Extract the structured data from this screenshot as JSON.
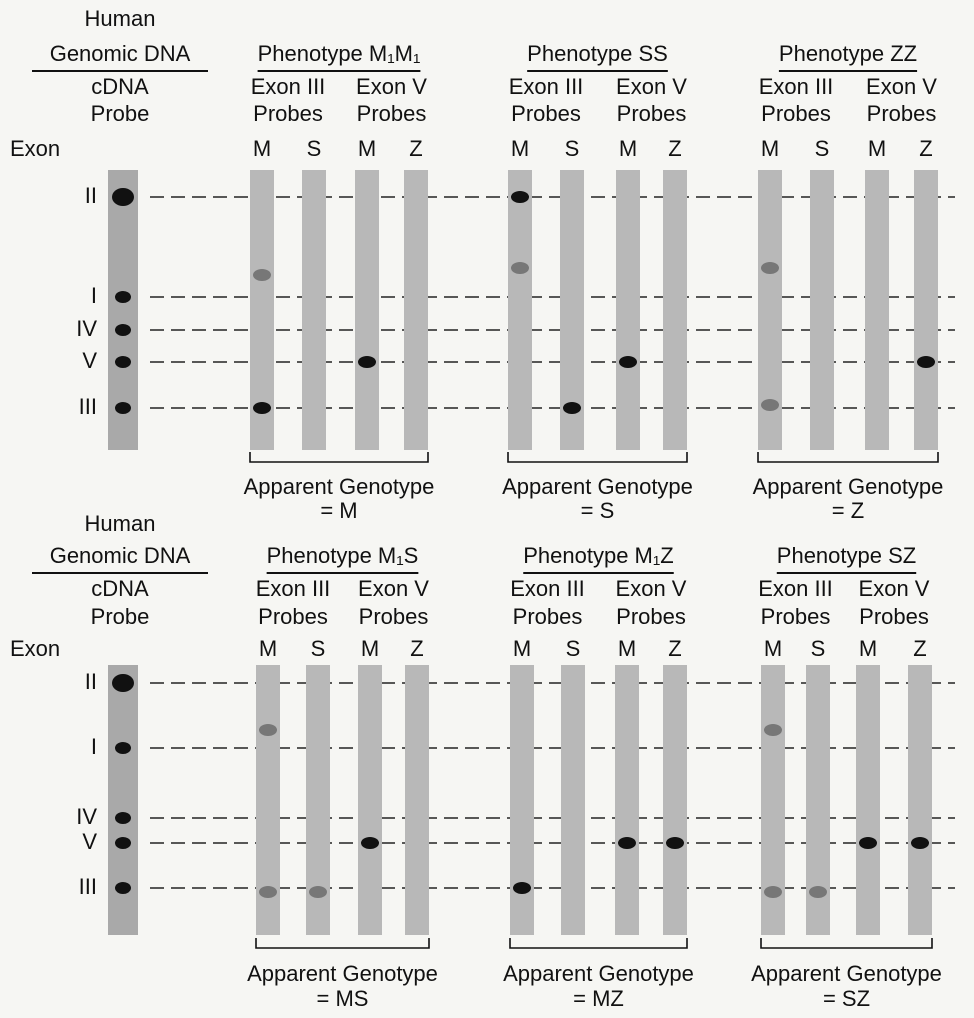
{
  "panels": [
    {
      "header": {
        "line1": "Human",
        "line2": "Genomic DNA",
        "line3": "cDNA",
        "line4": "Probe"
      },
      "exon_label": "Exon",
      "exons": [
        "II",
        "I",
        "IV",
        "V",
        "III"
      ],
      "groups": [
        {
          "title": "Phenotype M₁M₁",
          "probe_sets": [
            {
              "exon": "Exon III",
              "label": "Probes",
              "lanes": [
                "M",
                "S"
              ]
            },
            {
              "exon": "Exon V",
              "label": "Probes",
              "lanes": [
                "M",
                "Z"
              ]
            }
          ],
          "genotype_label": "Apparent Genotype",
          "genotype": "= M"
        },
        {
          "title": "Phenotype SS",
          "probe_sets": [
            {
              "exon": "Exon III",
              "label": "Probes",
              "lanes": [
                "M",
                "S"
              ]
            },
            {
              "exon": "Exon V",
              "label": "Probes",
              "lanes": [
                "M",
                "Z"
              ]
            }
          ],
          "genotype_label": "Apparent Genotype",
          "genotype": "= S"
        },
        {
          "title": "Phenotype ZZ",
          "probe_sets": [
            {
              "exon": "Exon III",
              "label": "Probes",
              "lanes": [
                "M",
                "S"
              ]
            },
            {
              "exon": "Exon V",
              "label": "Probes",
              "lanes": [
                "M",
                "Z"
              ]
            }
          ],
          "genotype_label": "Apparent Genotype",
          "genotype": "= Z"
        }
      ]
    },
    {
      "header": {
        "line1": "Human",
        "line2": "Genomic DNA",
        "line3": "cDNA",
        "line4": "Probe"
      },
      "exon_label": "Exon",
      "exons": [
        "II",
        "I",
        "IV",
        "V",
        "III"
      ],
      "groups": [
        {
          "title": "Phenotype M₁S",
          "probe_sets": [
            {
              "exon": "Exon III",
              "label": "Probes",
              "lanes": [
                "M",
                "S"
              ]
            },
            {
              "exon": "Exon V",
              "label": "Probes",
              "lanes": [
                "M",
                "Z"
              ]
            }
          ],
          "genotype_label": "Apparent Genotype",
          "genotype": "= MS"
        },
        {
          "title": "Phenotype M₁Z",
          "probe_sets": [
            {
              "exon": "Exon III",
              "label": "Probes",
              "lanes": [
                "M",
                "S"
              ]
            },
            {
              "exon": "Exon V",
              "label": "Probes",
              "lanes": [
                "M",
                "Z"
              ]
            }
          ],
          "genotype_label": "Apparent Genotype",
          "genotype": "= MZ"
        },
        {
          "title": "Phenotype SZ",
          "probe_sets": [
            {
              "exon": "Exon III",
              "label": "Probes",
              "lanes": [
                "M",
                "S"
              ]
            },
            {
              "exon": "Exon V",
              "label": "Probes",
              "lanes": [
                "M",
                "Z"
              ]
            }
          ],
          "genotype_label": "Apparent Genotype",
          "genotype": "= SZ"
        }
      ]
    }
  ]
}
